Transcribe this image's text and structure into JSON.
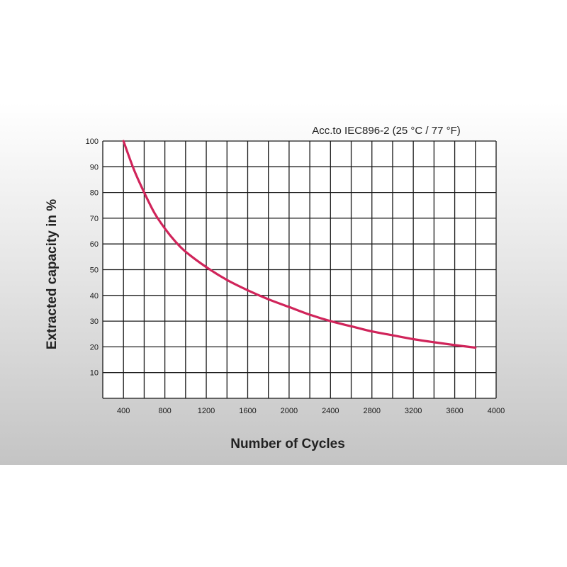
{
  "chart_data": {
    "type": "line",
    "annotation": "Acc.to IEC896-2 (25 °C / 77 °F)",
    "xlabel": "Number of Cycles",
    "ylabel": "Extracted capacity in %",
    "xlim": [
      200,
      4000
    ],
    "ylim": [
      0,
      100
    ],
    "x_ticks": [
      400,
      800,
      1200,
      1600,
      2000,
      2400,
      2800,
      3200,
      3600,
      4000
    ],
    "y_ticks": [
      10,
      20,
      30,
      40,
      50,
      60,
      70,
      80,
      90,
      100
    ],
    "x_grid_step": 200,
    "y_grid_step": 10,
    "grid": true,
    "series": [
      {
        "color": "#d0245a",
        "x": [
          400,
          500,
          600,
          700,
          800,
          900,
          1000,
          1200,
          1400,
          1600,
          1800,
          2000,
          2200,
          2400,
          2600,
          2800,
          3000,
          3200,
          3400,
          3600,
          3800
        ],
        "y": [
          100,
          89,
          80,
          72,
          66,
          61,
          57,
          51,
          46,
          42,
          38.5,
          35.5,
          32.5,
          30,
          28,
          26,
          24.5,
          23,
          21.8,
          20.7,
          19.7
        ]
      }
    ]
  }
}
